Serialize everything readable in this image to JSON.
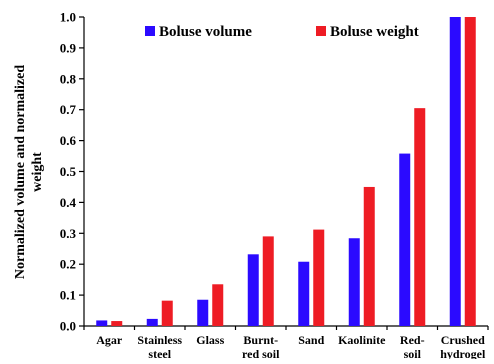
{
  "chart_data": {
    "type": "bar",
    "title": "",
    "xlabel": "",
    "ylabel": "Normalized volume and normalized weight",
    "ylabel_lines": [
      "Normalized volume and normalized",
      "weight"
    ],
    "ylim": [
      0,
      1.0
    ],
    "yticks": [
      "0.0",
      "0.1",
      "0.2",
      "0.3",
      "0.4",
      "0.5",
      "0.6",
      "0.7",
      "0.8",
      "0.9",
      "1.0"
    ],
    "grid": false,
    "legend_position": "top",
    "categories": [
      "Agar",
      "Stainless steel",
      "Glass",
      "Burnt-red soil",
      "Sand",
      "Kaolinite",
      "Red-soil",
      "Crushed hydrogel"
    ],
    "category_lines": [
      [
        "Agar"
      ],
      [
        "Stainless",
        "steel"
      ],
      [
        "Glass"
      ],
      [
        "Burnt-",
        "red soil"
      ],
      [
        "Sand"
      ],
      [
        "Kaolinite"
      ],
      [
        "Red-",
        "soil"
      ],
      [
        "Crushed",
        "hydrogel"
      ]
    ],
    "series": [
      {
        "name": "Boluse volume",
        "color": "#2b0aff",
        "values": [
          0.018,
          0.023,
          0.085,
          0.232,
          0.208,
          0.284,
          0.558,
          1.0
        ]
      },
      {
        "name": "Boluse weight",
        "color": "#ee1c24",
        "values": [
          0.016,
          0.082,
          0.135,
          0.29,
          0.312,
          0.45,
          0.705,
          1.0
        ]
      }
    ]
  }
}
